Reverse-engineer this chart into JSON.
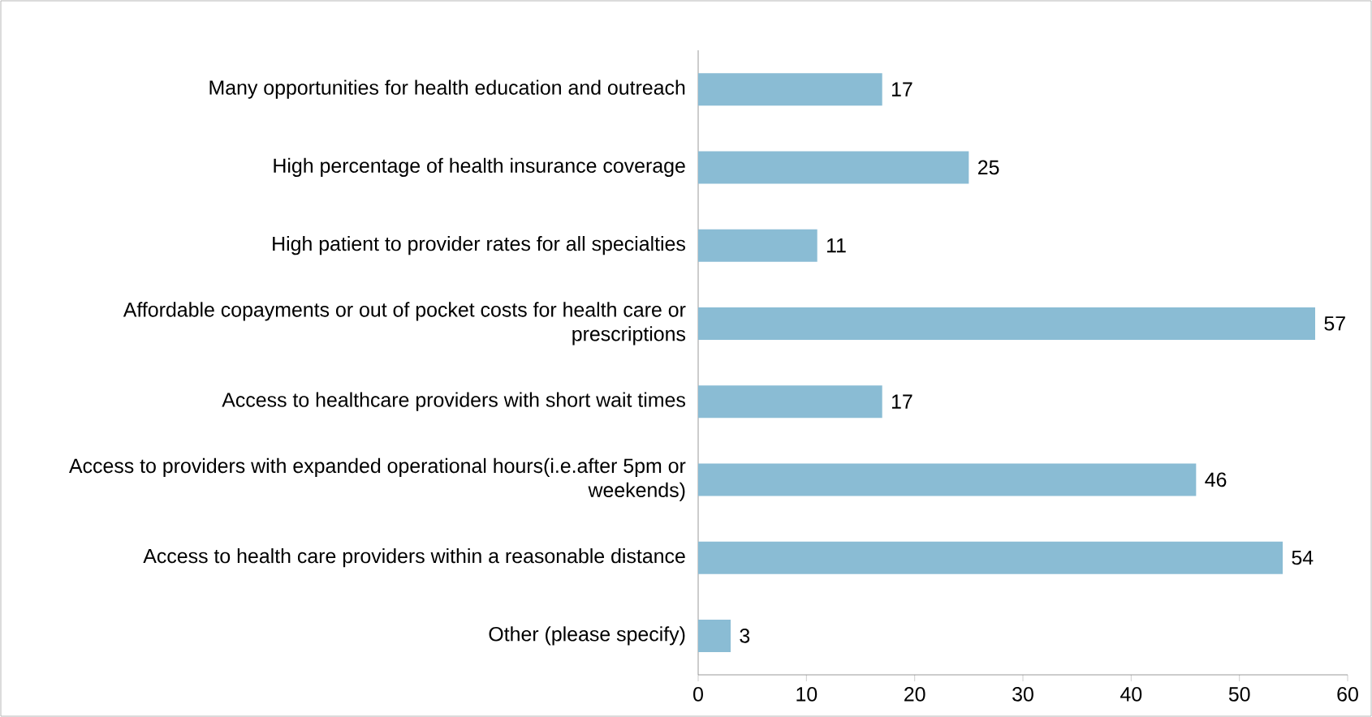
{
  "chart_data": {
    "type": "bar",
    "orientation": "horizontal",
    "categories": [
      "Many opportunities for health education and outreach",
      "High percentage of health insurance coverage",
      "High patient to provider rates for all specialties",
      "Affordable copayments or out of pocket costs for health care or prescriptions",
      "Access to healthcare providers with short wait times",
      "Access to providers with expanded operational hours(i.e.after 5pm or weekends)",
      "Access to health care providers within a reasonable distance",
      "Other (please specify)"
    ],
    "values": [
      17,
      25,
      11,
      57,
      17,
      46,
      54,
      3
    ],
    "color": "#8abcd4",
    "xlim": [
      0,
      60
    ],
    "xticks": [
      0,
      10,
      20,
      30,
      40,
      50,
      60
    ],
    "data_labels": true,
    "grid": false,
    "legend": false
  }
}
